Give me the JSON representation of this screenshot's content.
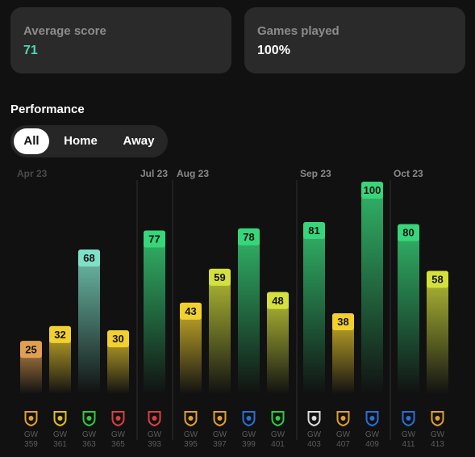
{
  "stats": {
    "average_score": {
      "label": "Average score",
      "value": "71",
      "color": "#4ed6b4"
    },
    "games_played": {
      "label": "Games played",
      "value": "100%",
      "color": "#ffffff"
    }
  },
  "performance": {
    "title": "Performance",
    "filters": [
      {
        "label": "All",
        "active": true
      },
      {
        "label": "Home",
        "active": false
      },
      {
        "label": "Away",
        "active": false
      }
    ]
  },
  "chart_data": {
    "type": "bar",
    "ylim": [
      0,
      100
    ],
    "color_scale": {
      "low": {
        "max": 35,
        "color": "#f2c94c"
      },
      "mid": {
        "max": 60,
        "color": "#d4e03c"
      },
      "high": {
        "color": "#37d67a"
      }
    },
    "months": [
      "Apr 23",
      "Jul 23",
      "Aug 23",
      "Sep 23",
      "Oct 23"
    ],
    "bars": [
      {
        "month": "Apr 23",
        "gw": "GW",
        "gw_num": "359",
        "value": 25,
        "color": "#e0a050",
        "icon": "club-crest-icon"
      },
      {
        "month": "Apr 23",
        "gw": "GW",
        "gw_num": "361",
        "value": 32,
        "color": "#f2d02e",
        "icon": "club-shield-icon"
      },
      {
        "month": "Apr 23",
        "gw": "GW",
        "gw_num": "363",
        "value": 68,
        "color": "#7fe0c8",
        "icon": "club-c-logo-icon"
      },
      {
        "month": "Apr 23",
        "gw": "GW",
        "gw_num": "365",
        "value": 30,
        "color": "#f2d02e",
        "icon": "club-badge-icon"
      },
      {
        "month": "Jul 23",
        "gw": "GW",
        "gw_num": "393",
        "value": 77,
        "color": "#37d67a",
        "icon": "club-badge-icon"
      },
      {
        "month": "Aug 23",
        "gw": "GW",
        "gw_num": "395",
        "value": 43,
        "color": "#f2d02e",
        "icon": "club-crest-icon"
      },
      {
        "month": "Aug 23",
        "gw": "GW",
        "gw_num": "397",
        "value": 59,
        "color": "#d4e03c",
        "icon": "club-crest-icon"
      },
      {
        "month": "Aug 23",
        "gw": "GW",
        "gw_num": "399",
        "value": 78,
        "color": "#37d67a",
        "icon": "club-round-logo-icon"
      },
      {
        "month": "Aug 23",
        "gw": "GW",
        "gw_num": "401",
        "value": 48,
        "color": "#d4e03c",
        "icon": "club-c-logo-icon"
      },
      {
        "month": "Sep 23",
        "gw": "GW",
        "gw_num": "403",
        "value": 81,
        "color": "#37d67a",
        "icon": "club-striped-icon"
      },
      {
        "month": "Sep 23",
        "gw": "GW",
        "gw_num": "407",
        "value": 38,
        "color": "#f2d02e",
        "icon": "club-crest-icon"
      },
      {
        "month": "Sep 23",
        "gw": "GW",
        "gw_num": "409",
        "value": 100,
        "color": "#37d67a",
        "icon": "club-g-logo-icon"
      },
      {
        "month": "Oct 23",
        "gw": "GW",
        "gw_num": "411",
        "value": 80,
        "color": "#37d67a",
        "icon": "club-round-logo-icon"
      },
      {
        "month": "Oct 23",
        "gw": "GW",
        "gw_num": "413",
        "value": 58,
        "color": "#d4e03c",
        "icon": "club-crest-icon"
      }
    ],
    "icon_colors": {
      "club-crest-icon": "#e0a030",
      "club-shield-icon": "#e0c020",
      "club-c-logo-icon": "#2ecc40",
      "club-badge-icon": "#d94040",
      "club-round-logo-icon": "#2a6fd6",
      "club-striped-icon": "#dddddd",
      "club-g-logo-icon": "#2a6fd6"
    }
  }
}
